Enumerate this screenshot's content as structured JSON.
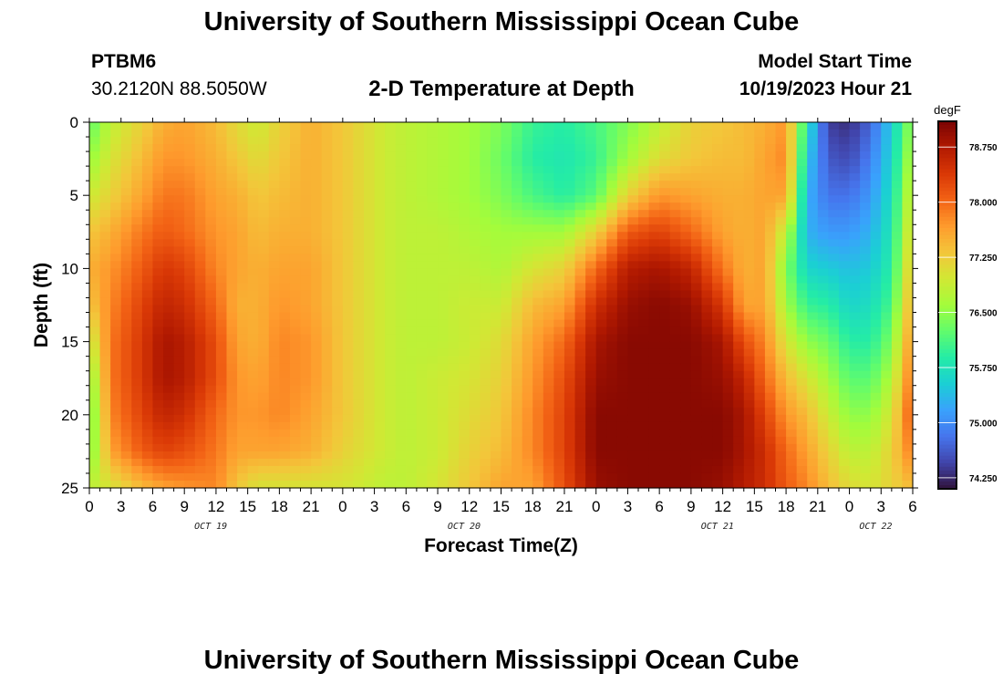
{
  "header": {
    "title": "University of Southern Mississippi Ocean Cube",
    "station_id": "PTBM6",
    "station_coords": "30.2120N  88.5050W",
    "plot_title": "2-D Temperature at Depth",
    "model_start_label": "Model Start Time",
    "model_start_value": "10/19/2023 Hour 21"
  },
  "footer": {
    "title": "University of Southern Mississippi Ocean Cube"
  },
  "chart_data": {
    "type": "heatmap",
    "title": "2-D Temperature at Depth",
    "xlabel": "Forecast Time(Z)",
    "ylabel": "Depth (ft)",
    "x_unit": "hours since 2023-10-19 00Z",
    "xlim": [
      0,
      78
    ],
    "ylim": [
      0,
      25
    ],
    "y_inverted": true,
    "x_tick_values": [
      0,
      3,
      6,
      9,
      12,
      15,
      18,
      21,
      24,
      27,
      30,
      33,
      36,
      39,
      42,
      45,
      48,
      51,
      54,
      57,
      60,
      63,
      66,
      69,
      72,
      75,
      78
    ],
    "x_tick_labels": [
      "0",
      "3",
      "6",
      "9",
      "12",
      "15",
      "18",
      "21",
      "0",
      "3",
      "6",
      "9",
      "12",
      "15",
      "18",
      "21",
      "0",
      "3",
      "6",
      "9",
      "12",
      "15",
      "18",
      "21",
      "0",
      "3",
      "6"
    ],
    "date_labels": [
      {
        "x": 11.5,
        "label": "OCT 19"
      },
      {
        "x": 35.5,
        "label": "OCT 20"
      },
      {
        "x": 59.5,
        "label": "OCT 21"
      },
      {
        "x": 74.5,
        "label": "OCT 22"
      }
    ],
    "y_tick_values": [
      0,
      5,
      10,
      15,
      20,
      25
    ],
    "y_tick_labels": [
      "0",
      "5",
      "10",
      "15",
      "20",
      "25"
    ],
    "colorbar": {
      "unit": "degF",
      "range": [
        74.1,
        79.1
      ],
      "tick_values": [
        74.25,
        75.0,
        75.75,
        76.5,
        77.25,
        78.0,
        78.75
      ],
      "tick_labels": [
        "74.250",
        "75.000",
        "75.750",
        "76.500",
        "77.250",
        "78.000",
        "78.750"
      ],
      "colors": [
        "#30123b",
        "#4145ab",
        "#4675ed",
        "#39a2fc",
        "#1bcfd4",
        "#24eca6",
        "#61fc6c",
        "#a4fc3b",
        "#d1e834",
        "#f3c63a",
        "#fe9b2d",
        "#f36315",
        "#d93806",
        "#b11901",
        "#7a0403"
      ]
    },
    "grid": {
      "x_anchors": [
        0,
        2,
        5,
        7,
        9,
        12,
        14,
        16,
        18,
        21,
        24,
        28,
        30,
        33,
        36,
        39,
        42,
        45,
        48,
        51,
        54,
        57,
        60,
        62,
        64,
        66,
        68,
        70,
        72,
        74,
        76,
        78
      ],
      "depths": [
        0,
        2.5,
        5,
        7.5,
        10,
        12.5,
        15,
        17.5,
        20,
        22.5,
        25
      ],
      "temperature_degF": [
        [
          76.2,
          76.5,
          76.9,
          77.3,
          77.5,
          77.3,
          76.8,
          76.4,
          76.2,
          76.3,
          76.8
        ],
        [
          76.8,
          77.0,
          77.2,
          77.5,
          77.7,
          77.8,
          77.9,
          77.9,
          77.8,
          77.6,
          77.0
        ],
        [
          77.2,
          77.4,
          77.6,
          77.9,
          78.1,
          78.3,
          78.4,
          78.4,
          78.3,
          78.1,
          77.4
        ],
        [
          77.5,
          77.7,
          77.9,
          78.1,
          78.4,
          78.6,
          78.8,
          78.8,
          78.6,
          78.3,
          77.6
        ],
        [
          77.6,
          77.7,
          77.9,
          78.0,
          78.3,
          78.5,
          78.7,
          78.7,
          78.5,
          78.2,
          77.7
        ],
        [
          77.4,
          77.5,
          77.6,
          77.7,
          77.8,
          78.0,
          78.2,
          78.2,
          78.0,
          77.9,
          77.8
        ],
        [
          77.1,
          77.3,
          77.5,
          77.6,
          77.6,
          77.5,
          77.6,
          77.7,
          77.7,
          77.6,
          77.3
        ],
        [
          76.9,
          77.1,
          77.3,
          77.4,
          77.5,
          77.5,
          77.5,
          77.6,
          77.7,
          77.6,
          77.0
        ],
        [
          77.2,
          77.3,
          77.4,
          77.5,
          77.6,
          77.7,
          77.8,
          77.8,
          77.8,
          77.6,
          77.0
        ],
        [
          77.5,
          77.5,
          77.5,
          77.5,
          77.6,
          77.6,
          77.7,
          77.7,
          77.6,
          77.5,
          77.0
        ],
        [
          77.3,
          77.3,
          77.3,
          77.3,
          77.3,
          77.3,
          77.3,
          77.3,
          77.3,
          77.2,
          77.0
        ],
        [
          76.9,
          76.9,
          76.9,
          76.9,
          76.9,
          76.9,
          76.9,
          76.9,
          76.9,
          76.9,
          76.8
        ],
        [
          76.8,
          76.8,
          76.8,
          76.8,
          76.8,
          76.8,
          76.8,
          76.8,
          76.8,
          76.8,
          76.8
        ],
        [
          76.7,
          76.7,
          76.7,
          76.8,
          76.8,
          76.8,
          76.8,
          76.9,
          76.9,
          76.9,
          77.0
        ],
        [
          76.6,
          76.6,
          76.6,
          76.7,
          76.8,
          76.9,
          76.9,
          77.0,
          77.1,
          77.2,
          77.3
        ],
        [
          76.4,
          76.3,
          76.4,
          76.6,
          76.7,
          76.9,
          77.1,
          77.2,
          77.3,
          77.4,
          77.6
        ],
        [
          76.0,
          75.9,
          76.1,
          76.6,
          77.0,
          77.4,
          77.6,
          77.7,
          77.8,
          77.8,
          77.6
        ],
        [
          75.9,
          75.8,
          75.9,
          76.6,
          77.2,
          77.6,
          78.0,
          78.2,
          78.3,
          78.3,
          78.2
        ],
        [
          76.1,
          76.0,
          76.2,
          77.2,
          78.0,
          78.5,
          78.8,
          78.9,
          79.0,
          79.0,
          78.9
        ],
        [
          76.4,
          76.6,
          77.2,
          78.1,
          78.7,
          78.9,
          79.0,
          79.0,
          79.0,
          79.0,
          79.0
        ],
        [
          76.8,
          77.1,
          77.7,
          78.3,
          78.8,
          79.0,
          79.0,
          79.0,
          79.0,
          79.0,
          79.0
        ],
        [
          77.2,
          77.3,
          77.6,
          78.0,
          78.6,
          78.9,
          79.0,
          79.0,
          79.0,
          79.0,
          79.0
        ],
        [
          77.3,
          77.4,
          77.5,
          77.6,
          77.9,
          78.4,
          78.8,
          78.9,
          79.0,
          79.0,
          78.9
        ],
        [
          77.4,
          77.4,
          77.5,
          77.5,
          77.5,
          77.6,
          78.2,
          78.6,
          78.8,
          78.8,
          78.7
        ],
        [
          77.5,
          77.6,
          77.6,
          77.6,
          77.6,
          77.6,
          77.8,
          78.0,
          78.3,
          78.5,
          78.5
        ],
        [
          77.7,
          77.8,
          77.6,
          76.8,
          76.4,
          76.6,
          77.0,
          77.4,
          77.7,
          78.0,
          78.1
        ],
        [
          75.8,
          75.5,
          75.3,
          75.3,
          75.6,
          76.0,
          76.5,
          77.0,
          77.4,
          77.6,
          77.8
        ],
        [
          74.4,
          74.6,
          74.8,
          75.1,
          75.5,
          75.9,
          76.3,
          76.6,
          76.9,
          77.2,
          77.4
        ],
        [
          74.3,
          74.5,
          74.8,
          75.1,
          75.4,
          75.6,
          75.9,
          76.2,
          76.5,
          76.8,
          77.1
        ],
        [
          74.7,
          74.9,
          75.1,
          75.3,
          75.5,
          75.7,
          75.9,
          76.2,
          76.5,
          76.8,
          77.0
        ],
        [
          75.5,
          75.6,
          75.7,
          75.8,
          75.9,
          76.1,
          76.4,
          76.7,
          77.0,
          77.2,
          77.2
        ],
        [
          76.6,
          76.8,
          77.0,
          77.2,
          77.4,
          77.6,
          77.8,
          78.0,
          78.2,
          77.9,
          77.4
        ]
      ]
    }
  }
}
